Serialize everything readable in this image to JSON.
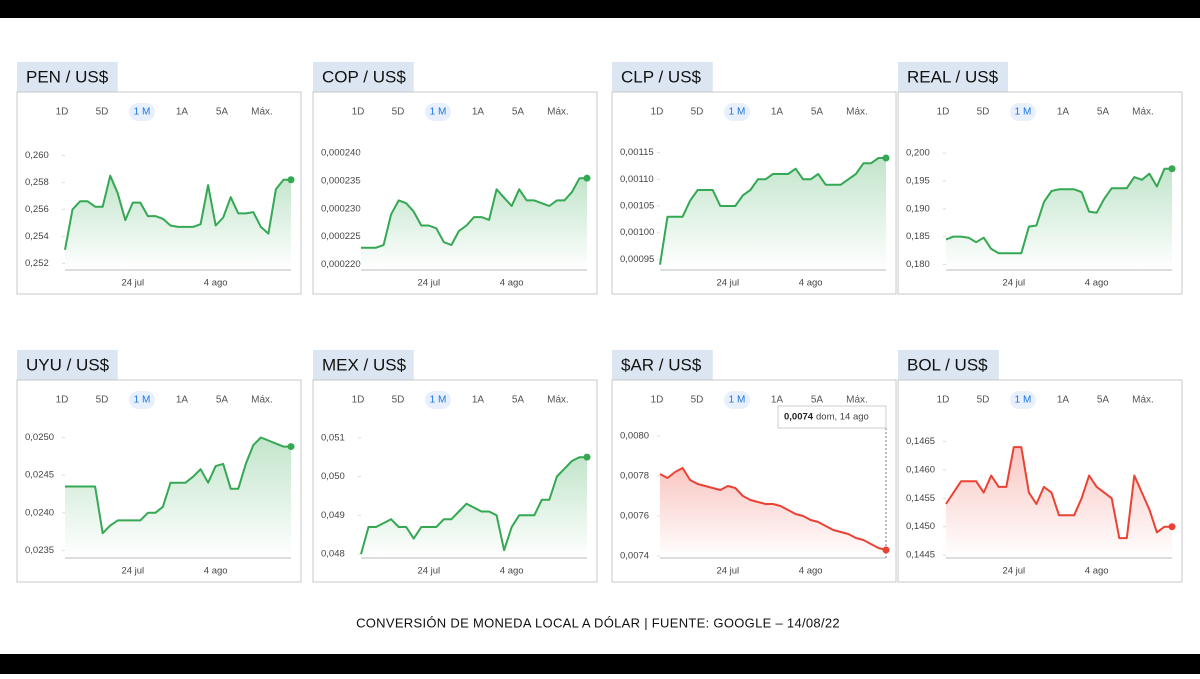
{
  "caption": "CONVERSIÓN DE MONEDA LOCAL A DÓLAR | FUENTE: GOOGLE – 14/08/22",
  "tabs": [
    "1D",
    "5D",
    "1 M",
    "1A",
    "5A",
    "Máx."
  ],
  "tooltip": {
    "value": "0,0074",
    "date": "dom, 14 ago"
  },
  "chart_data": [
    {
      "type": "line",
      "title": "PEN / US$",
      "color": "#34a853",
      "grid": false,
      "categories": [
        null,
        null,
        null,
        null,
        null,
        null,
        null,
        null,
        null,
        "24 jul",
        null,
        null,
        null,
        null,
        null,
        null,
        null,
        null,
        null,
        null,
        "4 ago",
        null,
        null,
        null,
        null,
        null,
        null,
        null,
        null,
        null,
        null
      ],
      "values": [
        0.253,
        0.256,
        0.2566,
        0.2566,
        0.2562,
        0.2562,
        0.2585,
        0.2572,
        0.2552,
        0.2565,
        0.2565,
        0.2555,
        0.2555,
        0.2553,
        0.2548,
        0.2547,
        0.2547,
        0.2547,
        0.2549,
        0.2578,
        0.2548,
        0.2554,
        0.2569,
        0.2557,
        0.2557,
        0.2558,
        0.2547,
        0.2542,
        0.2575,
        0.2582,
        0.2582
      ],
      "ylim": [
        0.2515,
        0.261
      ],
      "yticks": [
        {
          "value": 0.252,
          "label": "0,252"
        },
        {
          "value": 0.254,
          "label": "0,254"
        },
        {
          "value": 0.256,
          "label": "0,256"
        },
        {
          "value": 0.258,
          "label": "0,258"
        },
        {
          "value": 0.26,
          "label": "0,260"
        }
      ]
    },
    {
      "type": "line",
      "title": "COP / US$",
      "color": "#34a853",
      "grid": false,
      "categories": [
        null,
        null,
        null,
        null,
        null,
        null,
        null,
        null,
        null,
        "24 jul",
        null,
        null,
        null,
        null,
        null,
        null,
        null,
        null,
        null,
        null,
        "4 ago",
        null,
        null,
        null,
        null,
        null,
        null,
        null,
        null,
        null,
        null
      ],
      "values": [
        0.000223,
        0.000223,
        0.000223,
        0.0002235,
        0.000229,
        0.0002315,
        0.000231,
        0.0002295,
        0.000227,
        0.000227,
        0.0002265,
        0.000224,
        0.0002235,
        0.000226,
        0.000227,
        0.0002285,
        0.0002285,
        0.000228,
        0.0002335,
        0.000232,
        0.0002305,
        0.0002335,
        0.0002315,
        0.0002315,
        0.000231,
        0.0002305,
        0.0002315,
        0.0002315,
        0.000233,
        0.0002355,
        0.0002355
      ],
      "ylim": [
        0.000219,
        0.000242
      ],
      "yticks": [
        {
          "value": 0.00022,
          "label": "0,000220"
        },
        {
          "value": 0.000225,
          "label": "0,000225"
        },
        {
          "value": 0.00023,
          "label": "0,000230"
        },
        {
          "value": 0.000235,
          "label": "0,000235"
        },
        {
          "value": 0.00024,
          "label": "0,000240"
        }
      ]
    },
    {
      "type": "line",
      "title": "CLP / US$",
      "color": "#34a853",
      "grid": false,
      "categories": [
        null,
        null,
        null,
        null,
        null,
        null,
        null,
        null,
        null,
        "24 jul",
        null,
        null,
        null,
        null,
        null,
        null,
        null,
        null,
        null,
        null,
        "4 ago",
        null,
        null,
        null,
        null,
        null,
        null,
        null,
        null,
        null,
        null
      ],
      "values": [
        0.00094,
        0.00103,
        0.00103,
        0.00103,
        0.00106,
        0.00108,
        0.00108,
        0.00108,
        0.00105,
        0.00105,
        0.00105,
        0.00107,
        0.00108,
        0.0011,
        0.0011,
        0.00111,
        0.00111,
        0.00111,
        0.00112,
        0.0011,
        0.0011,
        0.00111,
        0.00109,
        0.00109,
        0.00109,
        0.0011,
        0.00111,
        0.00113,
        0.00113,
        0.00114,
        0.00114
      ],
      "ylim": [
        0.00093,
        0.00117
      ],
      "yticks": [
        {
          "value": 0.00095,
          "label": "0,00095"
        },
        {
          "value": 0.001,
          "label": "0,00100"
        },
        {
          "value": 0.00105,
          "label": "0,00105"
        },
        {
          "value": 0.0011,
          "label": "0,00110"
        },
        {
          "value": 0.00115,
          "label": "0,00115"
        }
      ]
    },
    {
      "type": "line",
      "title": "REAL / US$",
      "color": "#34a853",
      "grid": false,
      "categories": [
        null,
        null,
        null,
        null,
        null,
        null,
        null,
        null,
        null,
        "24 jul",
        null,
        null,
        null,
        null,
        null,
        null,
        null,
        null,
        null,
        null,
        "4 ago",
        null,
        null,
        null,
        null,
        null,
        null,
        null,
        null,
        null,
        null
      ],
      "values": [
        0.1845,
        0.185,
        0.185,
        0.1848,
        0.184,
        0.1848,
        0.1828,
        0.182,
        0.182,
        0.182,
        0.182,
        0.1868,
        0.187,
        0.1912,
        0.1932,
        0.1935,
        0.1935,
        0.1935,
        0.193,
        0.1895,
        0.1893,
        0.1918,
        0.1937,
        0.1937,
        0.1937,
        0.1957,
        0.1952,
        0.1963,
        0.194,
        0.1972,
        0.1972
      ],
      "ylim": [
        0.179,
        0.202
      ],
      "yticks": [
        {
          "value": 0.18,
          "label": "0,180"
        },
        {
          "value": 0.185,
          "label": "0,185"
        },
        {
          "value": 0.19,
          "label": "0,190"
        },
        {
          "value": 0.195,
          "label": "0,195"
        },
        {
          "value": 0.2,
          "label": "0,200"
        }
      ]
    },
    {
      "type": "line",
      "title": "UYU / US$",
      "color": "#34a853",
      "grid": false,
      "categories": [
        null,
        null,
        null,
        null,
        null,
        null,
        null,
        null,
        null,
        "24 jul",
        null,
        null,
        null,
        null,
        null,
        null,
        null,
        null,
        null,
        null,
        "4 ago",
        null,
        null,
        null,
        null,
        null,
        null,
        null,
        null,
        null,
        null
      ],
      "values": [
        0.02435,
        0.02435,
        0.02435,
        0.02435,
        0.02435,
        0.02373,
        0.02383,
        0.0239,
        0.0239,
        0.0239,
        0.0239,
        0.024,
        0.024,
        0.02408,
        0.0244,
        0.0244,
        0.0244,
        0.02448,
        0.02458,
        0.0244,
        0.02462,
        0.02465,
        0.02432,
        0.02432,
        0.02465,
        0.0249,
        0.025,
        0.02496,
        0.02492,
        0.02488,
        0.02488
      ],
      "ylim": [
        0.0234,
        0.0251
      ],
      "yticks": [
        {
          "value": 0.0235,
          "label": "0,0235"
        },
        {
          "value": 0.024,
          "label": "0,0240"
        },
        {
          "value": 0.0245,
          "label": "0,0245"
        },
        {
          "value": 0.025,
          "label": "0,0250"
        }
      ]
    },
    {
      "type": "line",
      "title": "MEX / US$",
      "color": "#34a853",
      "grid": false,
      "categories": [
        null,
        null,
        null,
        null,
        null,
        null,
        null,
        null,
        null,
        "24 jul",
        null,
        null,
        null,
        null,
        null,
        null,
        null,
        null,
        null,
        null,
        "4 ago",
        null,
        null,
        null,
        null,
        null,
        null,
        null,
        null,
        null,
        null
      ],
      "values": [
        0.048,
        0.0487,
        0.0487,
        0.0488,
        0.0489,
        0.0487,
        0.0487,
        0.0484,
        0.0487,
        0.0487,
        0.0487,
        0.0489,
        0.0489,
        0.0491,
        0.0493,
        0.0492,
        0.0491,
        0.0491,
        0.049,
        0.0481,
        0.0487,
        0.049,
        0.049,
        0.049,
        0.0494,
        0.0494,
        0.05,
        0.0502,
        0.0504,
        0.0505,
        0.0505
      ],
      "ylim": [
        0.0479,
        0.0512
      ],
      "yticks": [
        {
          "value": 0.048,
          "label": "0,048"
        },
        {
          "value": 0.049,
          "label": "0,049"
        },
        {
          "value": 0.05,
          "label": "0,050"
        },
        {
          "value": 0.051,
          "label": "0,051"
        }
      ]
    },
    {
      "type": "line",
      "title": "$AR / US$",
      "color": "#ea4335",
      "grid": false,
      "categories": [
        null,
        null,
        null,
        null,
        null,
        null,
        null,
        null,
        null,
        "24 jul",
        null,
        null,
        null,
        null,
        null,
        null,
        null,
        null,
        null,
        null,
        "4 ago",
        null,
        null,
        null,
        null,
        null,
        null,
        null,
        null,
        null,
        null
      ],
      "values": [
        0.00781,
        0.00779,
        0.00782,
        0.00784,
        0.00778,
        0.00776,
        0.00775,
        0.00774,
        0.00773,
        0.00775,
        0.00774,
        0.0077,
        0.00768,
        0.00767,
        0.00766,
        0.00766,
        0.00765,
        0.00763,
        0.00761,
        0.0076,
        0.00758,
        0.00757,
        0.00755,
        0.00753,
        0.00752,
        0.00751,
        0.00749,
        0.00748,
        0.00746,
        0.00744,
        0.00743
      ],
      "ylim": [
        0.00739,
        0.00803
      ],
      "yticks": [
        {
          "value": 0.0074,
          "label": "0,0074"
        },
        {
          "value": 0.0076,
          "label": "0,0076"
        },
        {
          "value": 0.0078,
          "label": "0,0078"
        },
        {
          "value": 0.008,
          "label": "0,0080"
        }
      ]
    },
    {
      "type": "line",
      "title": "BOL / US$",
      "color": "#ea4335",
      "grid": false,
      "categories": [
        null,
        null,
        null,
        null,
        null,
        null,
        null,
        null,
        null,
        "24 jul",
        null,
        null,
        null,
        null,
        null,
        null,
        null,
        null,
        null,
        null,
        "4 ago",
        null,
        null,
        null,
        null,
        null,
        null,
        null,
        null,
        null,
        null
      ],
      "values": [
        0.1454,
        0.1456,
        0.1458,
        0.1458,
        0.1458,
        0.1456,
        0.1459,
        0.1457,
        0.1457,
        0.1464,
        0.1464,
        0.1456,
        0.1454,
        0.1457,
        0.1456,
        0.1452,
        0.1452,
        0.1452,
        0.1455,
        0.1459,
        0.1457,
        0.1456,
        0.1455,
        0.1448,
        0.1448,
        0.1459,
        0.1456,
        0.1453,
        0.1449,
        0.145,
        0.145
      ],
      "ylim": [
        0.14445,
        0.1467
      ],
      "yticks": [
        {
          "value": 0.1445,
          "label": "0,1445"
        },
        {
          "value": 0.145,
          "label": "0,1450"
        },
        {
          "value": 0.1455,
          "label": "0,1455"
        },
        {
          "value": 0.146,
          "label": "0,1460"
        },
        {
          "value": 0.1465,
          "label": "0,1465"
        }
      ]
    }
  ]
}
